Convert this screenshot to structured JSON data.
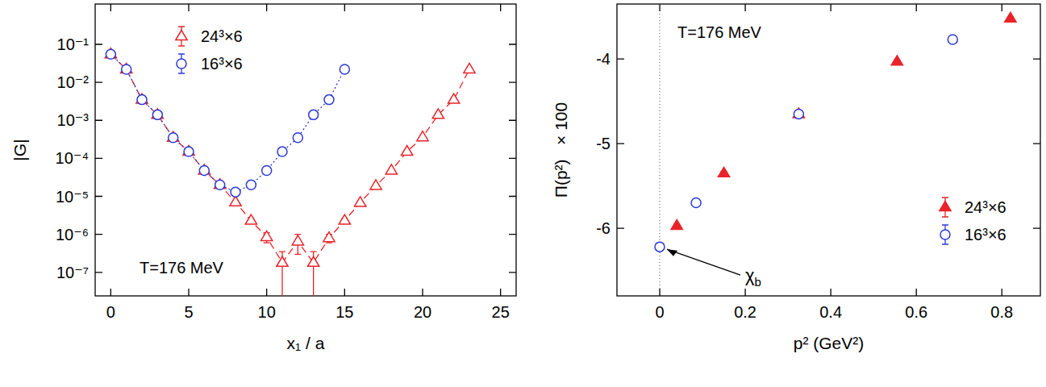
{
  "chart_data": [
    {
      "type": "scatter",
      "log": "y",
      "grid": false,
      "legend": "top",
      "x_label": "x₁ / a",
      "y_label": "|G|",
      "annotations": [
        "T=176 MeV"
      ],
      "xlim": [
        -1,
        26
      ],
      "xticks": [
        0,
        5,
        10,
        15,
        20,
        25
      ],
      "ylim": [
        2.4e-08,
        1.15
      ],
      "yticks": [
        {
          "value": 1e-07,
          "label": "10⁻⁷"
        },
        {
          "value": 1e-06,
          "label": "10⁻⁶"
        },
        {
          "value": 1e-05,
          "label": "10⁻⁵"
        },
        {
          "value": 0.0001,
          "label": "10⁻⁴"
        },
        {
          "value": 0.001,
          "label": "10⁻³"
        },
        {
          "value": 0.01,
          "label": "10⁻²"
        },
        {
          "value": 0.1,
          "label": "10⁻¹"
        }
      ],
      "series": [
        {
          "name": "24³×6",
          "color": "#e8242a",
          "marker": "open-triangle",
          "line_style": "dashed",
          "x": [
            0,
            1,
            2,
            3,
            4,
            5,
            6,
            7,
            8,
            9,
            10,
            11,
            12,
            13,
            14,
            15,
            16,
            17,
            18,
            19,
            20,
            21,
            22,
            23
          ],
          "values": [
            0.055,
            0.022,
            0.0035,
            0.0014,
            0.00035,
            0.00015,
            4.8e-05,
            2e-05,
            7e-06,
            2.3e-06,
            8.5e-07,
            1.8e-07,
            6.5e-07,
            1.8e-07,
            8e-07,
            2.3e-06,
            6.8e-06,
            1.9e-05,
            4.8e-05,
            0.00015,
            0.00036,
            0.0014,
            0.0035,
            0.022
          ],
          "errors": [
            0.002,
            0.002,
            0.0003,
            0.0001,
            3e-05,
            1e-05,
            4e-06,
            1.5e-06,
            6e-07,
            3e-07,
            2.5e-07,
            1.7e-07,
            3.5e-07,
            1.7e-07,
            2e-07,
            3e-07,
            6e-07,
            1.5e-06,
            4e-06,
            1e-05,
            3e-05,
            0.0001,
            0.0003,
            0.002
          ]
        },
        {
          "name": "16³×6",
          "color": "#2d3ad6",
          "marker": "open-circle",
          "line_style": "dotted",
          "x": [
            0,
            1,
            2,
            3,
            4,
            5,
            6,
            7,
            8,
            9,
            10,
            11,
            12,
            13,
            14,
            15
          ],
          "values": [
            0.055,
            0.022,
            0.0035,
            0.0014,
            0.00035,
            0.00015,
            4.8e-05,
            2e-05,
            1.3e-05,
            2e-05,
            4.8e-05,
            0.00015,
            0.00035,
            0.0014,
            0.0035,
            0.022
          ],
          "errors": [
            0.002,
            0.001,
            0.0002,
            7e-05,
            2e-05,
            8e-06,
            2.5e-06,
            1e-06,
            7e-07,
            1e-06,
            2.5e-06,
            8e-06,
            2e-05,
            7e-05,
            0.0002,
            0.001
          ]
        }
      ]
    },
    {
      "type": "scatter",
      "grid": false,
      "legend": "bottom-right",
      "x_label": "p² (GeV²)",
      "y_label": "Π(p²)   × 100",
      "annotations": [
        "T=176 MeV",
        "χb"
      ],
      "reference_x": 0,
      "xlim": [
        -0.1,
        0.89
      ],
      "xticks": [
        0,
        0.2,
        0.4,
        0.6,
        0.8
      ],
      "ylim": [
        -6.8,
        -3.35
      ],
      "yticks": [
        -6,
        -5,
        -4
      ],
      "series": [
        {
          "name": "24³×6",
          "color": "#e8242a",
          "marker": "triangle",
          "line_style": "none",
          "x": [
            0.04,
            0.15,
            0.325,
            0.555,
            0.82
          ],
          "values": [
            -5.97,
            -5.35,
            -4.65,
            -4.03,
            -3.52
          ],
          "errors": [
            0.02,
            0.02,
            0.02,
            0.02,
            0.02
          ]
        },
        {
          "name": "16³×6",
          "color": "#2d3ad6",
          "marker": "open-circle",
          "line_style": "none",
          "x": [
            0,
            0.085,
            0.325,
            0.685
          ],
          "values": [
            -6.22,
            -5.7,
            -4.65,
            -3.77
          ],
          "errors": [
            0.02,
            0.02,
            0.02,
            0.02
          ]
        }
      ]
    }
  ]
}
